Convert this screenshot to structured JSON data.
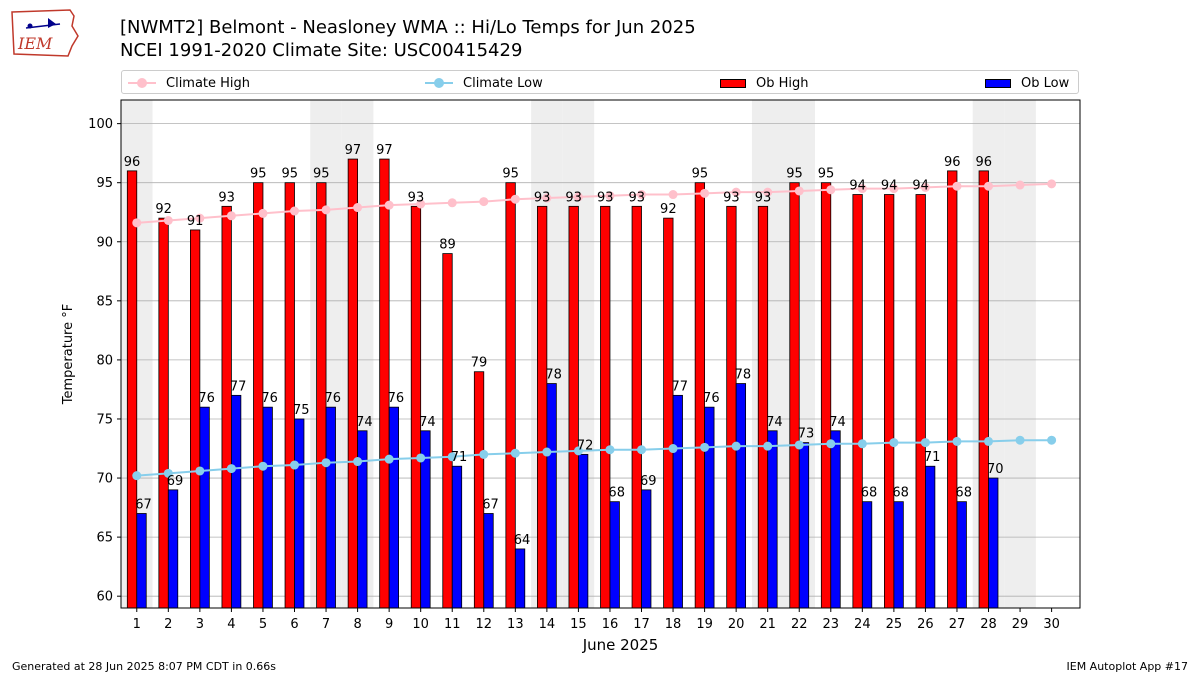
{
  "header": {
    "title_line1": "[NWMT2] Belmont - Neasloney WMA :: Hi/Lo Temps for Jun 2025",
    "title_line2": "NCEI 1991-2020 Climate Site: USC00415429",
    "logo_text": "IEM"
  },
  "legend": {
    "climate_high": "Climate High",
    "climate_low": "Climate Low",
    "ob_high": "Ob High",
    "ob_low": "Ob Low"
  },
  "footer": {
    "generated": "Generated at 28 Jun 2025 8:07 PM CDT in 0.66s",
    "app": "IEM Autoplot App #17"
  },
  "colors": {
    "ob_high": "#ff0000",
    "ob_low": "#0000ff",
    "climate_high": "#ffc0cb",
    "climate_low": "#87ceeb",
    "weekend_shade": "#eeeeee",
    "grid": "#b0b0b0"
  },
  "chart_data": {
    "type": "bar",
    "xlabel": "June 2025",
    "ylabel": "Temperature °F",
    "ylim": [
      59,
      102
    ],
    "yticks": [
      60,
      65,
      70,
      75,
      80,
      85,
      90,
      95,
      100
    ],
    "grid": "horizontal",
    "legend_position": "top",
    "days": [
      1,
      2,
      3,
      4,
      5,
      6,
      7,
      8,
      9,
      10,
      11,
      12,
      13,
      14,
      15,
      16,
      17,
      18,
      19,
      20,
      21,
      22,
      23,
      24,
      25,
      26,
      27,
      28,
      29,
      30
    ],
    "shaded_days": [
      1,
      7,
      8,
      14,
      15,
      21,
      22,
      28,
      29
    ],
    "series": [
      {
        "name": "Ob High",
        "kind": "bar",
        "values": [
          96,
          92,
          91,
          93,
          95,
          95,
          95,
          97,
          97,
          93,
          89,
          79,
          95,
          93,
          93,
          93,
          93,
          92,
          95,
          93,
          93,
          95,
          95,
          94,
          94,
          94,
          96,
          96
        ]
      },
      {
        "name": "Ob Low",
        "kind": "bar",
        "values": [
          67,
          69,
          76,
          77,
          76,
          75,
          76,
          74,
          76,
          74,
          71,
          67,
          64,
          78,
          72,
          68,
          69,
          77,
          76,
          78,
          74,
          73,
          74,
          68,
          68,
          71,
          68,
          70
        ]
      },
      {
        "name": "Climate High",
        "kind": "line",
        "values": [
          91.6,
          91.8,
          92.0,
          92.2,
          92.4,
          92.6,
          92.7,
          92.9,
          93.1,
          93.2,
          93.3,
          93.4,
          93.6,
          93.7,
          93.8,
          93.9,
          94.0,
          94.0,
          94.1,
          94.2,
          94.2,
          94.3,
          94.4,
          94.5,
          94.5,
          94.6,
          94.7,
          94.7,
          94.8,
          94.9
        ]
      },
      {
        "name": "Climate Low",
        "kind": "line",
        "values": [
          70.2,
          70.4,
          70.6,
          70.8,
          71.0,
          71.1,
          71.3,
          71.4,
          71.6,
          71.7,
          71.8,
          72.0,
          72.1,
          72.2,
          72.3,
          72.4,
          72.4,
          72.5,
          72.6,
          72.7,
          72.7,
          72.8,
          72.9,
          72.9,
          73.0,
          73.0,
          73.1,
          73.1,
          73.2,
          73.2
        ]
      }
    ]
  }
}
